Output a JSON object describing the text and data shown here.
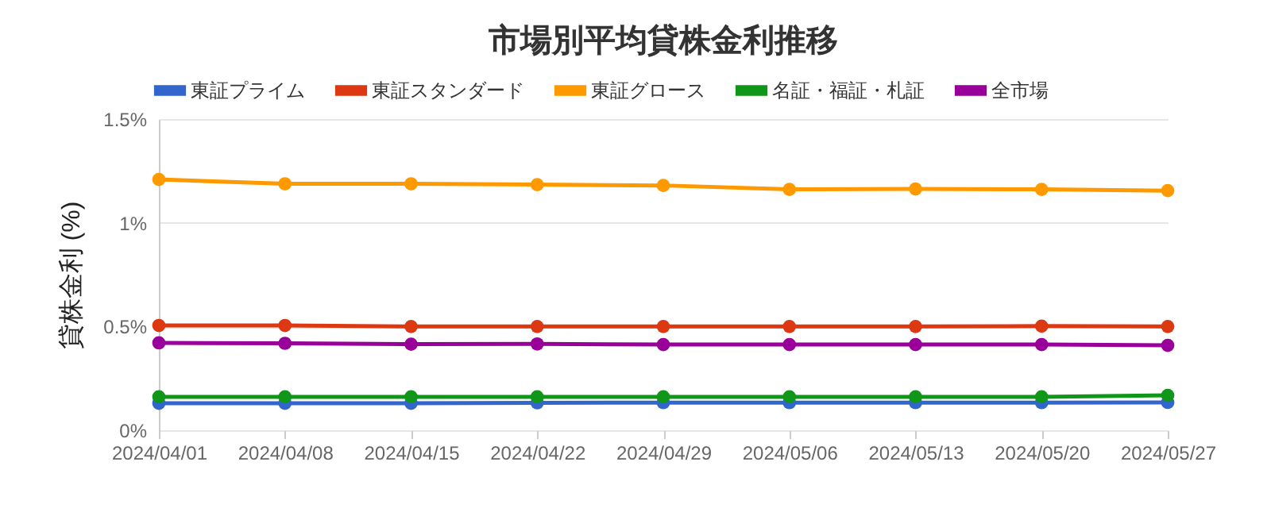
{
  "chart_data": {
    "type": "line",
    "title": "市場別平均貸株金利推移",
    "ylabel": "貸株金利 (%)",
    "categories": [
      "2024/04/01",
      "2024/04/08",
      "2024/04/15",
      "2024/04/22",
      "2024/04/29",
      "2024/05/06",
      "2024/05/13",
      "2024/05/20",
      "2024/05/27"
    ],
    "series": [
      {
        "name": "東証プライム",
        "color": "#3366cc",
        "values": [
          0.13,
          0.13,
          0.13,
          0.132,
          0.133,
          0.133,
          0.133,
          0.133,
          0.134
        ]
      },
      {
        "name": "東証スタンダード",
        "color": "#dc3912",
        "values": [
          0.505,
          0.505,
          0.5,
          0.5,
          0.5,
          0.5,
          0.5,
          0.502,
          0.5
        ]
      },
      {
        "name": "東証グロース",
        "color": "#ff9900",
        "values": [
          1.209,
          1.188,
          1.188,
          1.184,
          1.18,
          1.161,
          1.163,
          1.161,
          1.155
        ]
      },
      {
        "name": "名証・福証・札証",
        "color": "#109618",
        "values": [
          0.161,
          0.161,
          0.161,
          0.161,
          0.161,
          0.161,
          0.161,
          0.161,
          0.168
        ]
      },
      {
        "name": "全市場",
        "color": "#990099",
        "values": [
          0.421,
          0.419,
          0.415,
          0.416,
          0.413,
          0.413,
          0.413,
          0.413,
          0.409
        ]
      }
    ],
    "ylim": [
      0,
      1.5
    ],
    "yticks": [
      {
        "value": 0,
        "label": "0%"
      },
      {
        "value": 0.5,
        "label": "0.5%"
      },
      {
        "value": 1,
        "label": "1%"
      },
      {
        "value": 1.5,
        "label": "1.5%"
      }
    ],
    "grid": "y",
    "legend": "top",
    "marker": "circle",
    "line_style": "solid"
  }
}
